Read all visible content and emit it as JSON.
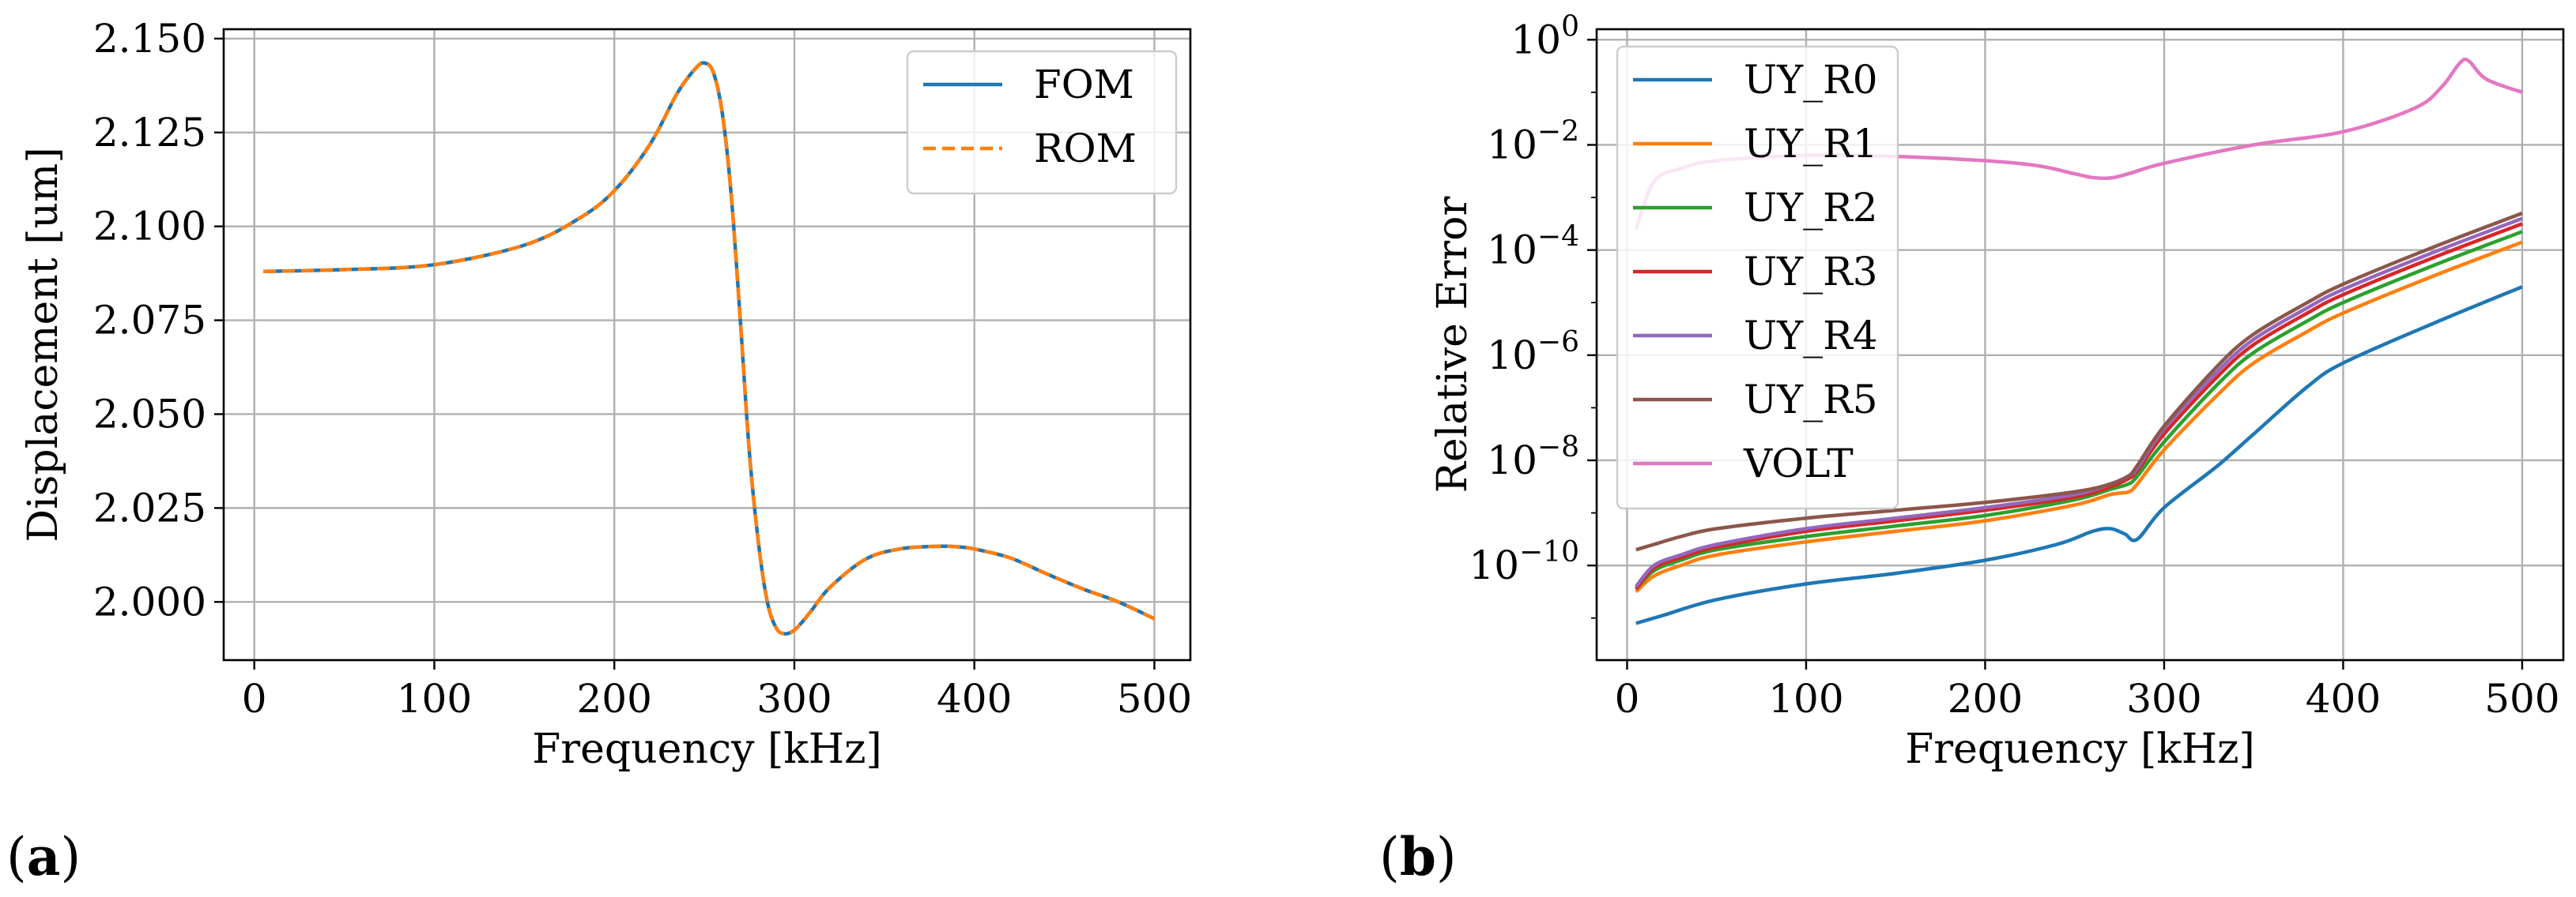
{
  "colors": {
    "blue": "#1f77b4",
    "orange": "#ff7f0e",
    "green": "#2ca02c",
    "red": "#d62728",
    "purple": "#9467bd",
    "brown": "#8c564b",
    "pink": "#e377c2"
  },
  "chart_data": [
    {
      "panel": "(a)",
      "panel_parts": [
        "(",
        "a",
        ")"
      ],
      "type": "line",
      "xlabel": "Frequency [kHz]",
      "ylabel": "Displacement [um]",
      "xlim": [
        -17,
        520
      ],
      "ylim": [
        1.9845,
        2.1525
      ],
      "xticks": [
        0,
        100,
        200,
        300,
        400,
        500
      ],
      "yticks": [
        2.0,
        2.025,
        2.05,
        2.075,
        2.1,
        2.125,
        2.15
      ],
      "ytick_labels": [
        "2.000",
        "2.025",
        "2.050",
        "2.075",
        "2.100",
        "2.125",
        "2.150"
      ],
      "grid": true,
      "legend_position": "top-right",
      "series": [
        {
          "name": "FOM",
          "color": "#1f77b4",
          "style": "solid",
          "x": [
            5,
            50,
            100,
            150,
            180,
            200,
            220,
            235,
            245,
            250,
            255,
            260,
            265,
            270,
            275,
            280,
            285,
            290,
            295,
            300,
            305,
            310,
            320,
            340,
            360,
            380,
            390,
            400,
            420,
            440,
            460,
            480,
            500
          ],
          "y": [
            2.088,
            2.0885,
            2.0898,
            2.095,
            2.102,
            2.1095,
            2.122,
            2.1355,
            2.142,
            2.1435,
            2.141,
            2.13,
            2.108,
            2.075,
            2.04,
            2.016,
            2.0,
            1.993,
            1.9915,
            1.9925,
            1.995,
            1.998,
            2.004,
            2.0115,
            2.0142,
            2.0148,
            2.0147,
            2.0141,
            2.0117,
            2.0075,
            2.0035,
            2.0,
            1.9955
          ]
        },
        {
          "name": "ROM",
          "color": "#ff7f0e",
          "style": "dashed",
          "x": [
            5,
            50,
            100,
            150,
            180,
            200,
            220,
            235,
            245,
            250,
            255,
            260,
            265,
            270,
            275,
            280,
            285,
            290,
            295,
            300,
            305,
            310,
            320,
            340,
            360,
            380,
            390,
            400,
            420,
            440,
            460,
            480,
            500
          ],
          "y": [
            2.088,
            2.0885,
            2.0898,
            2.095,
            2.102,
            2.1095,
            2.122,
            2.1355,
            2.142,
            2.1435,
            2.141,
            2.13,
            2.108,
            2.075,
            2.04,
            2.016,
            2.0,
            1.993,
            1.9915,
            1.9925,
            1.995,
            1.998,
            2.004,
            2.0115,
            2.0142,
            2.0148,
            2.0147,
            2.0141,
            2.0117,
            2.0075,
            2.0035,
            2.0,
            1.9955
          ]
        }
      ]
    },
    {
      "panel": "(b)",
      "panel_parts": [
        "(",
        "b",
        ")"
      ],
      "type": "line",
      "yscale": "log",
      "xlabel": "Frequency [kHz]",
      "ylabel": "Relative Error",
      "xlim": [
        -17,
        523
      ],
      "ylim_log10": [
        -11.8,
        0.2
      ],
      "xticks": [
        0,
        100,
        200,
        300,
        400,
        500
      ],
      "ytick_exponents": [
        -10,
        -8,
        -6,
        -4,
        -2,
        0
      ],
      "ytick_base": "10",
      "grid": true,
      "legend_position": "upper-left",
      "series": [
        {
          "name": "UY_R0",
          "color": "#1f77b4",
          "x": [
            5,
            20,
            50,
            100,
            150,
            200,
            240,
            260,
            270,
            278,
            285,
            300,
            330,
            350,
            380,
            400,
            450,
            500
          ],
          "log10_y": [
            -11.1,
            -10.95,
            -10.65,
            -10.35,
            -10.15,
            -9.9,
            -9.6,
            -9.35,
            -9.3,
            -9.4,
            -9.5,
            -8.9,
            -8.1,
            -7.5,
            -6.6,
            -6.15,
            -5.4,
            -4.7
          ]
        },
        {
          "name": "UY_R1",
          "color": "#ff7f0e",
          "x": [
            5,
            15,
            30,
            50,
            100,
            150,
            200,
            250,
            270,
            280,
            285,
            300,
            330,
            350,
            380,
            400,
            450,
            500
          ],
          "log10_y": [
            -10.5,
            -10.2,
            -10.0,
            -9.8,
            -9.55,
            -9.35,
            -9.15,
            -8.85,
            -8.65,
            -8.6,
            -8.45,
            -7.8,
            -6.75,
            -6.15,
            -5.55,
            -5.2,
            -4.5,
            -3.85
          ]
        },
        {
          "name": "UY_R2",
          "color": "#2ca02c",
          "x": [
            5,
            15,
            30,
            50,
            100,
            150,
            200,
            250,
            270,
            280,
            285,
            300,
            330,
            350,
            380,
            400,
            450,
            500
          ],
          "log10_y": [
            -10.45,
            -10.1,
            -9.9,
            -9.7,
            -9.45,
            -9.25,
            -9.05,
            -8.75,
            -8.55,
            -8.45,
            -8.3,
            -7.65,
            -6.55,
            -5.95,
            -5.35,
            -5.0,
            -4.3,
            -3.65
          ]
        },
        {
          "name": "UY_R3",
          "color": "#d62728",
          "x": [
            5,
            15,
            30,
            50,
            100,
            150,
            200,
            250,
            270,
            280,
            285,
            300,
            330,
            350,
            380,
            400,
            450,
            500
          ],
          "log10_y": [
            -10.45,
            -10.05,
            -9.85,
            -9.65,
            -9.35,
            -9.15,
            -8.95,
            -8.7,
            -8.5,
            -8.35,
            -8.2,
            -7.5,
            -6.4,
            -5.8,
            -5.2,
            -4.85,
            -4.15,
            -3.5
          ]
        },
        {
          "name": "UY_R4",
          "color": "#9467bd",
          "x": [
            5,
            15,
            30,
            50,
            100,
            150,
            200,
            250,
            270,
            280,
            285,
            300,
            330,
            350,
            380,
            400,
            450,
            500
          ],
          "log10_y": [
            -10.4,
            -10.0,
            -9.8,
            -9.6,
            -9.3,
            -9.1,
            -8.9,
            -8.65,
            -8.45,
            -8.3,
            -8.15,
            -7.4,
            -6.3,
            -5.7,
            -5.1,
            -4.75,
            -4.05,
            -3.4
          ]
        },
        {
          "name": "UY_R5",
          "color": "#8c564b",
          "x": [
            5,
            15,
            30,
            50,
            100,
            150,
            200,
            250,
            270,
            280,
            285,
            300,
            330,
            350,
            380,
            400,
            450,
            500
          ],
          "log10_y": [
            -9.7,
            -9.6,
            -9.45,
            -9.3,
            -9.1,
            -8.95,
            -8.8,
            -8.6,
            -8.45,
            -8.3,
            -8.1,
            -7.35,
            -6.2,
            -5.6,
            -5.0,
            -4.65,
            -3.95,
            -3.3
          ]
        },
        {
          "name": "VOLT",
          "color": "#e377c2",
          "x": [
            5,
            15,
            30,
            50,
            100,
            150,
            200,
            230,
            250,
            260,
            270,
            280,
            300,
            350,
            400,
            440,
            455,
            465,
            470,
            480,
            500
          ],
          "log10_y": [
            -3.6,
            -2.7,
            -2.45,
            -2.3,
            -2.2,
            -2.22,
            -2.3,
            -2.4,
            -2.55,
            -2.62,
            -2.63,
            -2.55,
            -2.35,
            -2.0,
            -1.75,
            -1.3,
            -0.9,
            -0.45,
            -0.4,
            -0.75,
            -1.0
          ]
        }
      ]
    }
  ]
}
